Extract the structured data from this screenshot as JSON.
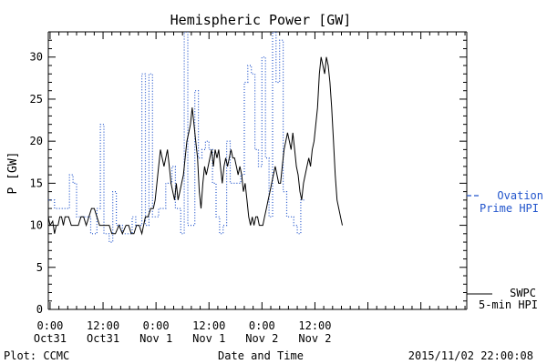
{
  "chart_data": {
    "type": "line",
    "title": "Hemispheric Power [GW]",
    "xlabel": "Date and Time",
    "ylabel": "P [GW]",
    "ylim": [
      0,
      33
    ],
    "y_ticks": [
      0,
      5,
      10,
      15,
      20,
      25,
      30
    ],
    "xlim": [
      -0.2,
      47.2
    ],
    "x_ticks": [
      {
        "x": 0,
        "line1": "0:00",
        "line2": "Oct31"
      },
      {
        "x": 6,
        "line1": "12:00",
        "line2": "Oct31"
      },
      {
        "x": 12,
        "line1": "0:00",
        "line2": "Nov 1"
      },
      {
        "x": 18,
        "line1": "12:00",
        "line2": "Nov 1"
      },
      {
        "x": 24,
        "line1": "0:00",
        "line2": "Nov 2"
      },
      {
        "x": 30,
        "line1": "12:00",
        "line2": "Nov 2"
      }
    ],
    "grid": false,
    "footer_left": "Plot: CCMC",
    "footer_right": "2015/11/02 22:00:08",
    "series": [
      {
        "name": "SWPC 5-min HPI",
        "legend_line1": "SWPC",
        "legend_line2": "5-min HPI",
        "color": "#000000",
        "style": "solid",
        "points": [
          [
            -0.2,
            11
          ],
          [
            0,
            10
          ],
          [
            0.3,
            10.5
          ],
          [
            0.5,
            9
          ],
          [
            0.7,
            10
          ],
          [
            0.9,
            10
          ],
          [
            1.1,
            11
          ],
          [
            1.3,
            11
          ],
          [
            1.5,
            10
          ],
          [
            1.7,
            11
          ],
          [
            1.9,
            11
          ],
          [
            2.1,
            11
          ],
          [
            2.4,
            10
          ],
          [
            2.8,
            10
          ],
          [
            3.2,
            10
          ],
          [
            3.5,
            11
          ],
          [
            3.8,
            11
          ],
          [
            4.1,
            10
          ],
          [
            4.4,
            11
          ],
          [
            4.7,
            12
          ],
          [
            5.0,
            12
          ],
          [
            5.3,
            11
          ],
          [
            5.6,
            10
          ],
          [
            6.0,
            10
          ],
          [
            6.4,
            10
          ],
          [
            6.7,
            10
          ],
          [
            7.0,
            9
          ],
          [
            7.4,
            9
          ],
          [
            7.8,
            10
          ],
          [
            8.2,
            9
          ],
          [
            8.6,
            10
          ],
          [
            8.9,
            10
          ],
          [
            9.2,
            9
          ],
          [
            9.5,
            9
          ],
          [
            9.8,
            10
          ],
          [
            10.1,
            10
          ],
          [
            10.4,
            9
          ],
          [
            10.8,
            11
          ],
          [
            11.1,
            11
          ],
          [
            11.4,
            12
          ],
          [
            11.7,
            12
          ],
          [
            11.9,
            13
          ],
          [
            12.1,
            15
          ],
          [
            12.3,
            17
          ],
          [
            12.5,
            19
          ],
          [
            12.7,
            18
          ],
          [
            12.9,
            17
          ],
          [
            13.1,
            18
          ],
          [
            13.3,
            19
          ],
          [
            13.5,
            17
          ],
          [
            13.7,
            15
          ],
          [
            13.9,
            14
          ],
          [
            14.1,
            13
          ],
          [
            14.3,
            15
          ],
          [
            14.5,
            13
          ],
          [
            14.7,
            14
          ],
          [
            14.9,
            15
          ],
          [
            15.1,
            16
          ],
          [
            15.3,
            18
          ],
          [
            15.5,
            20
          ],
          [
            15.7,
            21
          ],
          [
            15.9,
            22
          ],
          [
            16.1,
            24
          ],
          [
            16.3,
            22
          ],
          [
            16.5,
            20
          ],
          [
            16.7,
            18
          ],
          [
            16.9,
            14
          ],
          [
            17.1,
            12
          ],
          [
            17.3,
            15
          ],
          [
            17.5,
            17
          ],
          [
            17.7,
            16
          ],
          [
            17.9,
            17
          ],
          [
            18.1,
            18
          ],
          [
            18.3,
            19
          ],
          [
            18.5,
            17
          ],
          [
            18.7,
            19
          ],
          [
            18.9,
            18
          ],
          [
            19.1,
            19
          ],
          [
            19.3,
            17
          ],
          [
            19.5,
            15
          ],
          [
            19.7,
            17
          ],
          [
            19.9,
            18
          ],
          [
            20.1,
            17
          ],
          [
            20.3,
            18
          ],
          [
            20.5,
            19
          ],
          [
            20.7,
            18
          ],
          [
            20.9,
            18
          ],
          [
            21.1,
            17
          ],
          [
            21.3,
            16
          ],
          [
            21.5,
            17
          ],
          [
            21.7,
            16
          ],
          [
            21.9,
            14
          ],
          [
            22.1,
            15
          ],
          [
            22.3,
            13
          ],
          [
            22.5,
            11
          ],
          [
            22.7,
            10
          ],
          [
            22.9,
            11
          ],
          [
            23.1,
            10
          ],
          [
            23.3,
            11
          ],
          [
            23.5,
            11
          ],
          [
            23.7,
            10
          ],
          [
            23.9,
            10
          ],
          [
            24.1,
            10
          ],
          [
            24.3,
            11
          ],
          [
            24.5,
            12
          ],
          [
            24.7,
            13
          ],
          [
            24.9,
            14
          ],
          [
            25.1,
            15
          ],
          [
            25.3,
            16
          ],
          [
            25.5,
            17
          ],
          [
            25.7,
            16
          ],
          [
            25.9,
            15
          ],
          [
            26.1,
            15
          ],
          [
            26.3,
            17
          ],
          [
            26.5,
            19
          ],
          [
            26.7,
            20
          ],
          [
            26.9,
            21
          ],
          [
            27.1,
            20
          ],
          [
            27.3,
            19
          ],
          [
            27.5,
            21
          ],
          [
            27.7,
            19
          ],
          [
            27.9,
            17
          ],
          [
            28.1,
            16
          ],
          [
            28.3,
            14
          ],
          [
            28.5,
            13
          ],
          [
            28.7,
            15
          ],
          [
            28.9,
            16
          ],
          [
            29.1,
            17
          ],
          [
            29.3,
            18
          ],
          [
            29.5,
            17
          ],
          [
            29.7,
            19
          ],
          [
            29.9,
            20
          ],
          [
            30.1,
            22
          ],
          [
            30.3,
            24
          ],
          [
            30.5,
            28
          ],
          [
            30.7,
            30
          ],
          [
            30.9,
            29
          ],
          [
            31.1,
            28
          ],
          [
            31.3,
            30
          ],
          [
            31.5,
            29
          ],
          [
            31.7,
            27
          ],
          [
            31.9,
            24
          ],
          [
            32.1,
            20
          ],
          [
            32.3,
            16
          ],
          [
            32.5,
            13
          ],
          [
            32.7,
            12
          ],
          [
            32.9,
            11
          ],
          [
            33.1,
            10
          ]
        ]
      },
      {
        "name": "Ovation Prime HPI",
        "legend_line1": "Ovation",
        "legend_line2": "Prime HPI",
        "color": "#2255cc",
        "style": "dotted",
        "points": [
          [
            -0.2,
            13
          ],
          [
            0.5,
            13
          ],
          [
            0.5,
            12
          ],
          [
            2.2,
            12
          ],
          [
            2.2,
            16
          ],
          [
            2.6,
            16
          ],
          [
            2.6,
            15
          ],
          [
            3.0,
            15
          ],
          [
            3.0,
            11
          ],
          [
            4.6,
            11
          ],
          [
            4.6,
            9
          ],
          [
            5.3,
            9
          ],
          [
            5.3,
            12
          ],
          [
            5.7,
            12
          ],
          [
            5.7,
            22
          ],
          [
            6.1,
            22
          ],
          [
            6.1,
            9
          ],
          [
            6.7,
            9
          ],
          [
            6.7,
            8
          ],
          [
            7.1,
            8
          ],
          [
            7.1,
            14
          ],
          [
            7.5,
            14
          ],
          [
            7.5,
            10
          ],
          [
            8.2,
            10
          ],
          [
            8.2,
            9
          ],
          [
            9.3,
            9
          ],
          [
            9.3,
            11
          ],
          [
            9.7,
            11
          ],
          [
            9.7,
            10
          ],
          [
            10.4,
            10
          ],
          [
            10.4,
            28
          ],
          [
            10.8,
            28
          ],
          [
            10.8,
            10
          ],
          [
            11.2,
            10
          ],
          [
            11.2,
            28
          ],
          [
            11.6,
            28
          ],
          [
            11.6,
            11
          ],
          [
            12.3,
            11
          ],
          [
            12.3,
            12
          ],
          [
            13.1,
            12
          ],
          [
            13.1,
            15
          ],
          [
            13.8,
            15
          ],
          [
            13.8,
            17
          ],
          [
            14.2,
            17
          ],
          [
            14.2,
            12
          ],
          [
            14.8,
            12
          ],
          [
            14.8,
            9
          ],
          [
            15.2,
            9
          ],
          [
            15.2,
            33
          ],
          [
            15.6,
            33
          ],
          [
            15.6,
            10
          ],
          [
            16.4,
            10
          ],
          [
            16.4,
            26
          ],
          [
            16.8,
            26
          ],
          [
            16.8,
            18
          ],
          [
            17.2,
            18
          ],
          [
            17.2,
            19
          ],
          [
            17.6,
            19
          ],
          [
            17.6,
            20
          ],
          [
            18.0,
            20
          ],
          [
            18.0,
            19
          ],
          [
            18.4,
            19
          ],
          [
            18.4,
            15
          ],
          [
            18.8,
            15
          ],
          [
            18.8,
            11
          ],
          [
            19.2,
            11
          ],
          [
            19.2,
            9
          ],
          [
            19.6,
            9
          ],
          [
            19.6,
            10
          ],
          [
            20.0,
            10
          ],
          [
            20.0,
            20
          ],
          [
            20.4,
            20
          ],
          [
            20.4,
            15
          ],
          [
            21.6,
            15
          ],
          [
            21.6,
            16
          ],
          [
            22.0,
            16
          ],
          [
            22.0,
            27
          ],
          [
            22.4,
            27
          ],
          [
            22.4,
            29
          ],
          [
            22.8,
            29
          ],
          [
            22.8,
            28
          ],
          [
            23.2,
            28
          ],
          [
            23.2,
            19
          ],
          [
            23.6,
            19
          ],
          [
            23.6,
            17
          ],
          [
            24.0,
            17
          ],
          [
            24.0,
            30
          ],
          [
            24.4,
            30
          ],
          [
            24.4,
            18
          ],
          [
            24.8,
            18
          ],
          [
            24.8,
            11
          ],
          [
            25.2,
            11
          ],
          [
            25.2,
            33
          ],
          [
            25.6,
            33
          ],
          [
            25.6,
            27
          ],
          [
            26.0,
            27
          ],
          [
            26.0,
            32
          ],
          [
            26.4,
            32
          ],
          [
            26.4,
            14
          ],
          [
            26.8,
            14
          ],
          [
            26.8,
            11
          ],
          [
            27.6,
            11
          ],
          [
            27.6,
            10
          ],
          [
            28.0,
            10
          ],
          [
            28.0,
            9
          ],
          [
            28.4,
            9
          ],
          [
            28.4,
            13
          ],
          [
            28.8,
            13
          ]
        ]
      }
    ]
  }
}
